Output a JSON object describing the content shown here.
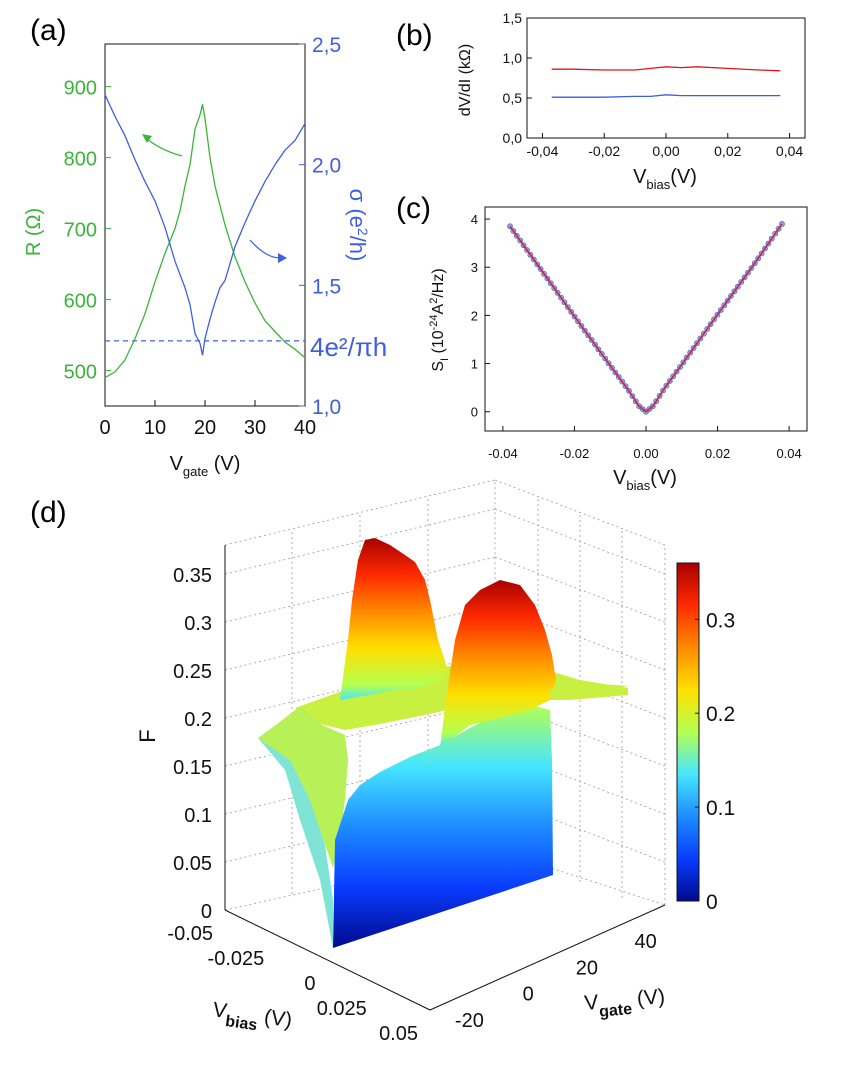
{
  "colors": {
    "green": "#3cb43c",
    "blue": "#3f5fdc",
    "red": "#e01818",
    "axis": "#111111",
    "dash": "#3f5fdc",
    "colormap": [
      "#000a8c",
      "#0a3cff",
      "#1e8cff",
      "#46e6ff",
      "#b4ff50",
      "#ffe000",
      "#ff8a00",
      "#ff2a00",
      "#a80000"
    ]
  },
  "chart_data": [
    {
      "panel": "(a)",
      "type": "line",
      "xlabel_main": "V",
      "xlabel_sub": "gate",
      "xlabel_tail": " (V)",
      "ylabel_left": "R (Ω)",
      "ylabel_right_main": "σ (e",
      "ylabel_right_sup": "2",
      "ylabel_right_tail": "/h)",
      "xlim": [
        0,
        40
      ],
      "ylim_left": [
        450,
        960
      ],
      "ylim_right": [
        1.0,
        2.5
      ],
      "xticks": [
        "0",
        "10",
        "20",
        "30",
        "40"
      ],
      "yticks_left": [
        "500",
        "600",
        "700",
        "800",
        "900"
      ],
      "yticks_right": [
        "1,0",
        "1,5",
        "2,0",
        "2,5"
      ],
      "dashed_line_label": "4e²/πh",
      "dashed_line_value": 1.27,
      "series": [
        {
          "axis": "left",
          "x": [
            0,
            2,
            4,
            6,
            8,
            10,
            12,
            14,
            15,
            16,
            17,
            18,
            19,
            19.5,
            20,
            21,
            22,
            24,
            26,
            28,
            30,
            32,
            34,
            36,
            38,
            40
          ],
          "y": [
            490,
            498,
            515,
            545,
            580,
            625,
            665,
            700,
            725,
            760,
            790,
            840,
            860,
            875,
            855,
            800,
            760,
            705,
            660,
            625,
            595,
            570,
            555,
            540,
            530,
            518
          ]
        },
        {
          "axis": "right",
          "x": [
            0,
            2,
            4,
            6,
            8,
            10,
            12,
            14,
            16,
            17,
            18,
            19,
            19.5,
            20,
            21,
            22,
            23,
            24,
            26,
            28,
            30,
            32,
            34,
            36,
            38,
            40
          ],
          "y": [
            2.29,
            2.2,
            2.12,
            2.02,
            1.93,
            1.85,
            1.74,
            1.6,
            1.49,
            1.42,
            1.3,
            1.26,
            1.21,
            1.28,
            1.36,
            1.43,
            1.49,
            1.52,
            1.66,
            1.76,
            1.85,
            1.93,
            2.0,
            2.06,
            2.1,
            2.17
          ]
        }
      ]
    },
    {
      "panel": "(b)",
      "type": "line",
      "ylabel": "dV/dI (kΩ)",
      "xlabel_main": "V",
      "xlabel_sub": "bias",
      "xlabel_tail": "(V)",
      "xlim": [
        -0.045,
        0.045
      ],
      "ylim": [
        0.0,
        1.5
      ],
      "xticks": [
        "-0,04",
        "-0,02",
        "0,00",
        "0,02",
        "0,04"
      ],
      "yticks": [
        "0,0",
        "0,5",
        "1,0",
        "1,5"
      ],
      "series": [
        {
          "color": "red",
          "x": [
            -0.037,
            -0.03,
            -0.02,
            -0.01,
            -0.005,
            0.0,
            0.005,
            0.01,
            0.02,
            0.03,
            0.037
          ],
          "y": [
            0.86,
            0.86,
            0.85,
            0.85,
            0.87,
            0.89,
            0.88,
            0.89,
            0.87,
            0.85,
            0.84
          ]
        },
        {
          "color": "blue",
          "x": [
            -0.037,
            -0.03,
            -0.02,
            -0.01,
            -0.005,
            0.0,
            0.005,
            0.01,
            0.02,
            0.03,
            0.037
          ],
          "y": [
            0.51,
            0.51,
            0.51,
            0.52,
            0.52,
            0.54,
            0.53,
            0.53,
            0.53,
            0.53,
            0.53
          ]
        }
      ]
    },
    {
      "panel": "(c)",
      "type": "scatter",
      "ylabel_parts": [
        "S",
        "I",
        " (10",
        "-24",
        "A",
        "2",
        "/Hz)"
      ],
      "xlabel_main": "V",
      "xlabel_sub": "bias",
      "xlabel_tail": "(V)",
      "xlim": [
        -0.045,
        0.045
      ],
      "ylim": [
        -0.4,
        4.25
      ],
      "xticks": [
        "-0.04",
        "-0.02",
        "0.00",
        "0.02",
        "0.04"
      ],
      "yticks": [
        "0",
        "1",
        "2",
        "3",
        "4"
      ],
      "curve_x": [
        -0.038,
        -0.03,
        -0.02,
        -0.01,
        -0.005,
        -0.002,
        0.0,
        0.002,
        0.005,
        0.01,
        0.02,
        0.03,
        0.038
      ],
      "curve_y": [
        3.85,
        3.02,
        1.98,
        0.96,
        0.46,
        0.12,
        0.0,
        0.12,
        0.47,
        0.98,
        2.02,
        3.04,
        3.9
      ]
    },
    {
      "panel": "(d)",
      "type": "surface",
      "zlabel": "F",
      "xlabel_main": "V",
      "xlabel_sub": "bias",
      "xlabel_tail": " (V)",
      "ylabel_main": "V",
      "ylabel_sub": "gate",
      "ylabel_tail": " (V)",
      "zticks": [
        "0",
        "0.05",
        "0.1",
        "0.15",
        "0.2",
        "0.25",
        "0.3",
        "0.35"
      ],
      "xticks": [
        "-0.05",
        "-0.025",
        "0",
        "0.025",
        "0.05"
      ],
      "yticks": [
        "-20",
        "0",
        "20",
        "40"
      ],
      "colorbar_ticks": [
        "0",
        "0.1",
        "0.2",
        "0.3"
      ],
      "zlim": [
        0,
        0.36
      ],
      "peaks_gate_V": [
        0,
        20
      ],
      "peak_values": [
        0.37,
        0.33
      ]
    }
  ],
  "panel_labels": [
    "(a)",
    "(b)",
    "(c)",
    "(d)"
  ]
}
